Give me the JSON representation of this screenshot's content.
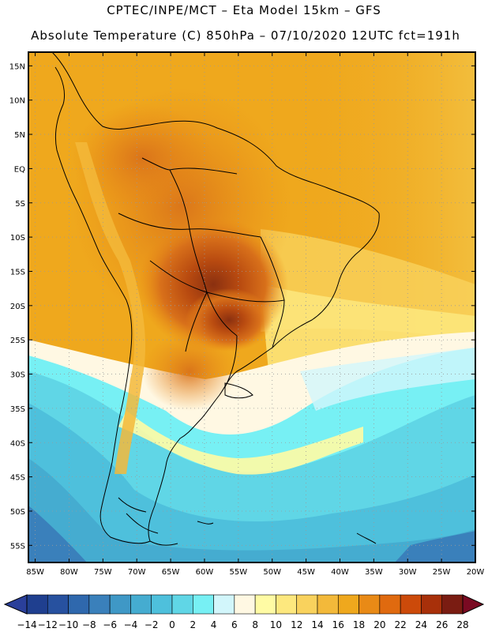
{
  "header": {
    "line1": "CPTEC/INPE/MCT –  Eta Model 15km – GFS",
    "line2": "Absolute Temperature (C) 850hPa – 07/10/2020 12UTC fct=191h"
  },
  "map": {
    "region": "South America",
    "lat_labels": [
      "15N",
      "10N",
      "5N",
      "EQ",
      "5S",
      "10S",
      "15S",
      "20S",
      "25S",
      "30S",
      "35S",
      "40S",
      "45S",
      "50S",
      "55S"
    ],
    "lon_labels": [
      "85W",
      "80W",
      "75W",
      "70W",
      "65W",
      "60W",
      "55W",
      "50W",
      "45W",
      "40W",
      "35W",
      "30W",
      "25W",
      "20W"
    ]
  },
  "colorbar": {
    "ticks": [
      "-14",
      "-12",
      "-10",
      "-8",
      "-6",
      "-4",
      "-2",
      "0",
      "2",
      "4",
      "6",
      "8",
      "10",
      "12",
      "14",
      "16",
      "18",
      "20",
      "22",
      "24",
      "26",
      "28"
    ],
    "colors": [
      "#1f3f8f",
      "#27519f",
      "#2f68ad",
      "#3a80bb",
      "#3f98c6",
      "#45acd0",
      "#4ec0dc",
      "#60d6e6",
      "#77f0f4",
      "#d2f6fb",
      "#fff8e3",
      "#fffba4",
      "#fde87e",
      "#f9d25d",
      "#f3b93a",
      "#efa81d",
      "#e98a16",
      "#e06a0f",
      "#cc4a0a",
      "#a8300a",
      "#7a1c12"
    ],
    "under_color": "#2a3f9a",
    "over_color": "#7a0a22"
  }
}
